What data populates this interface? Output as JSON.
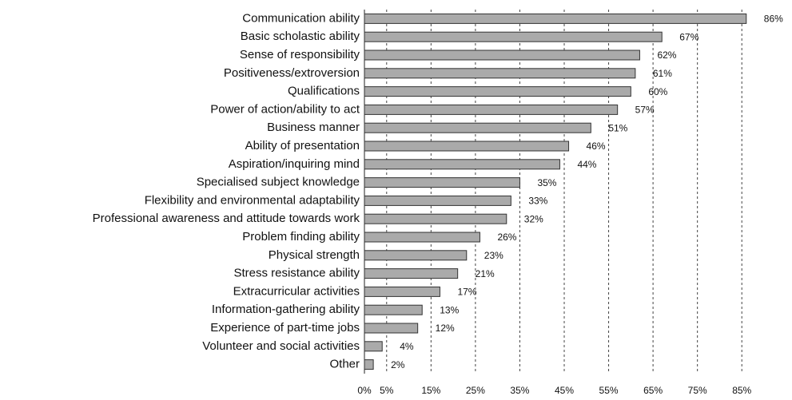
{
  "chart_data": {
    "type": "barh",
    "categories": [
      "Communication ability",
      "Basic scholastic ability",
      "Sense of responsibility",
      "Positiveness/extroversion",
      "Qualifications",
      "Power of action/ability to act",
      "Business manner",
      "Ability of presentation",
      "Aspiration/inquiring mind",
      "Specialised subject knowledge",
      "Flexibility and environmental adaptability",
      "Professional awareness and attitude towards work",
      "Problem finding ability",
      "Physical strength",
      "Stress resistance ability",
      "Extracurricular activities",
      "Information-gathering ability",
      "Experience of part-time jobs",
      "Volunteer and social activities",
      "Other"
    ],
    "values": [
      86,
      67,
      62,
      61,
      60,
      57,
      51,
      46,
      44,
      35,
      33,
      32,
      26,
      23,
      21,
      17,
      13,
      12,
      4,
      2
    ],
    "value_labels": [
      "86%",
      "67%",
      "62%",
      "61%",
      "60%",
      "57%",
      "51%",
      "46%",
      "44%",
      "35%",
      "33%",
      "32%",
      "26%",
      "23%",
      "21%",
      "17%",
      "13%",
      "12%",
      "4%",
      "2%"
    ],
    "color": "#aaaaaa",
    "xlim": [
      0,
      90
    ],
    "xticks": [
      {
        "value": 0,
        "label": "0%"
      },
      {
        "value": 5,
        "label": "5%"
      },
      {
        "value": 15,
        "label": "15%"
      },
      {
        "value": 25,
        "label": "25%"
      },
      {
        "value": 35,
        "label": "35%"
      },
      {
        "value": 45,
        "label": "45%"
      },
      {
        "value": 55,
        "label": "55%"
      },
      {
        "value": 65,
        "label": "65%"
      },
      {
        "value": 75,
        "label": "75%"
      },
      {
        "value": 85,
        "label": "85%"
      }
    ],
    "grid": true
  }
}
